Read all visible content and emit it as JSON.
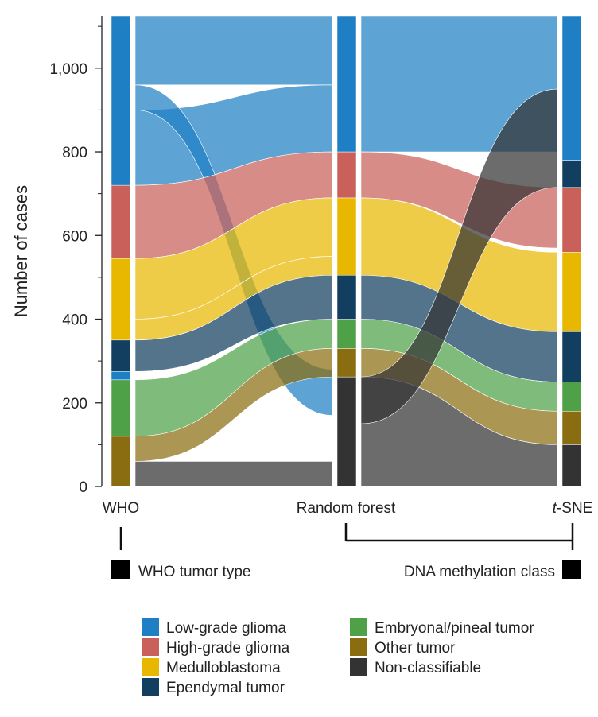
{
  "chart_data": {
    "type": "sankey",
    "ylabel": "Number of cases",
    "yticks": [
      0,
      200,
      400,
      600,
      800,
      1000
    ],
    "ytick_labels": [
      "0",
      "200",
      "400",
      "600",
      "800",
      "1,000"
    ],
    "ylim": [
      0,
      1125
    ],
    "columns": [
      {
        "label": "WHO",
        "label_prefix": "",
        "label_suffix": ""
      },
      {
        "label": "Random forest",
        "label_prefix": "",
        "label_suffix": ""
      },
      {
        "label": "t-SNE",
        "label_prefix": "t",
        "label_suffix": "-SNE"
      }
    ],
    "brackets": [
      {
        "text": "WHO tumor type"
      },
      {
        "text": "DNA methylation class"
      }
    ],
    "categories": [
      {
        "name": "Low-grade glioma",
        "color": "#1f7fc4"
      },
      {
        "name": "High-grade glioma",
        "color": "#c9605a"
      },
      {
        "name": "Medulloblastoma",
        "color": "#e8b800"
      },
      {
        "name": "Ependymal tumor",
        "color": "#123f5f"
      },
      {
        "name": "Embryonal/pineal tumor",
        "color": "#4ea146"
      },
      {
        "name": "Other tumor",
        "color": "#8a6d10"
      },
      {
        "name": "Non-classifiable",
        "color": "#333333"
      }
    ],
    "stacks": {
      "WHO": [
        {
          "category": "Other tumor",
          "from": 0,
          "to": 120
        },
        {
          "category": "Embryonal/pineal tumor",
          "from": 120,
          "to": 255
        },
        {
          "category": "Low-grade glioma",
          "from": 255,
          "to": 275
        },
        {
          "category": "Ependymal tumor",
          "from": 275,
          "to": 350
        },
        {
          "category": "Medulloblastoma",
          "from": 350,
          "to": 545
        },
        {
          "category": "High-grade glioma",
          "from": 545,
          "to": 720
        },
        {
          "category": "Low-grade glioma",
          "from": 720,
          "to": 1125
        }
      ],
      "Random forest": [
        {
          "category": "Non-classifiable",
          "from": 0,
          "to": 262
        },
        {
          "category": "Other tumor",
          "from": 262,
          "to": 330
        },
        {
          "category": "Embryonal/pineal tumor",
          "from": 330,
          "to": 400
        },
        {
          "category": "Ependymal tumor",
          "from": 400,
          "to": 505
        },
        {
          "category": "Medulloblastoma",
          "from": 505,
          "to": 690
        },
        {
          "category": "High-grade glioma",
          "from": 690,
          "to": 800
        },
        {
          "category": "Low-grade glioma",
          "from": 800,
          "to": 1125
        }
      ],
      "t-SNE": [
        {
          "category": "Non-classifiable",
          "from": 0,
          "to": 100
        },
        {
          "category": "Other tumor",
          "from": 100,
          "to": 180
        },
        {
          "category": "Embryonal/pineal tumor",
          "from": 180,
          "to": 250
        },
        {
          "category": "Ependymal tumor",
          "from": 250,
          "to": 370
        },
        {
          "category": "Medulloblastoma",
          "from": 370,
          "to": 560
        },
        {
          "category": "High-grade glioma",
          "from": 560,
          "to": 715
        },
        {
          "category": "Ependymal tumor",
          "from": 715,
          "to": 780
        },
        {
          "category": "Low-grade glioma",
          "from": 780,
          "to": 1125
        }
      ]
    },
    "flows": {
      "WHO_to_RF": [
        {
          "category": "Low-grade glioma",
          "a": [
            960,
            1125
          ],
          "b": [
            960,
            1125
          ]
        },
        {
          "category": "Low-grade glioma",
          "a": [
            720,
            900
          ],
          "b": [
            800,
            960
          ]
        },
        {
          "category": "Low-grade glioma",
          "a": [
            900,
            960
          ],
          "b": [
            170,
            280
          ]
        },
        {
          "category": "High-grade glioma",
          "a": [
            545,
            720
          ],
          "b": [
            690,
            800
          ]
        },
        {
          "category": "Medulloblastoma",
          "a": [
            400,
            545
          ],
          "b": [
            550,
            690
          ]
        },
        {
          "category": "Medulloblastoma",
          "a": [
            350,
            400
          ],
          "b": [
            505,
            550
          ]
        },
        {
          "category": "Ependymal tumor",
          "a": [
            275,
            350
          ],
          "b": [
            400,
            505
          ]
        },
        {
          "category": "Embryonal/pineal tumor",
          "a": [
            120,
            255
          ],
          "b": [
            330,
            400
          ]
        },
        {
          "category": "Other tumor",
          "a": [
            60,
            120
          ],
          "b": [
            262,
            330
          ]
        },
        {
          "category": "Non-classifiable",
          "a": [
            0,
            60
          ],
          "b": [
            0,
            60
          ]
        }
      ],
      "RF_to_tSNE": [
        {
          "category": "Low-grade glioma",
          "a": [
            800,
            1125
          ],
          "b": [
            800,
            1125
          ]
        },
        {
          "category": "High-grade glioma",
          "a": [
            690,
            800
          ],
          "b": [
            570,
            715
          ]
        },
        {
          "category": "Medulloblastoma",
          "a": [
            505,
            690
          ],
          "b": [
            370,
            560
          ]
        },
        {
          "category": "Ependymal tumor",
          "a": [
            400,
            505
          ],
          "b": [
            250,
            370
          ]
        },
        {
          "category": "Embryonal/pineal tumor",
          "a": [
            330,
            400
          ],
          "b": [
            180,
            250
          ]
        },
        {
          "category": "Other tumor",
          "a": [
            262,
            330
          ],
          "b": [
            100,
            180
          ]
        },
        {
          "category": "Non-classifiable",
          "a": [
            0,
            262
          ],
          "b": [
            0,
            100
          ]
        },
        {
          "category": "Non-classifiable",
          "a": [
            150,
            262
          ],
          "b": [
            715,
            950
          ]
        }
      ]
    }
  }
}
